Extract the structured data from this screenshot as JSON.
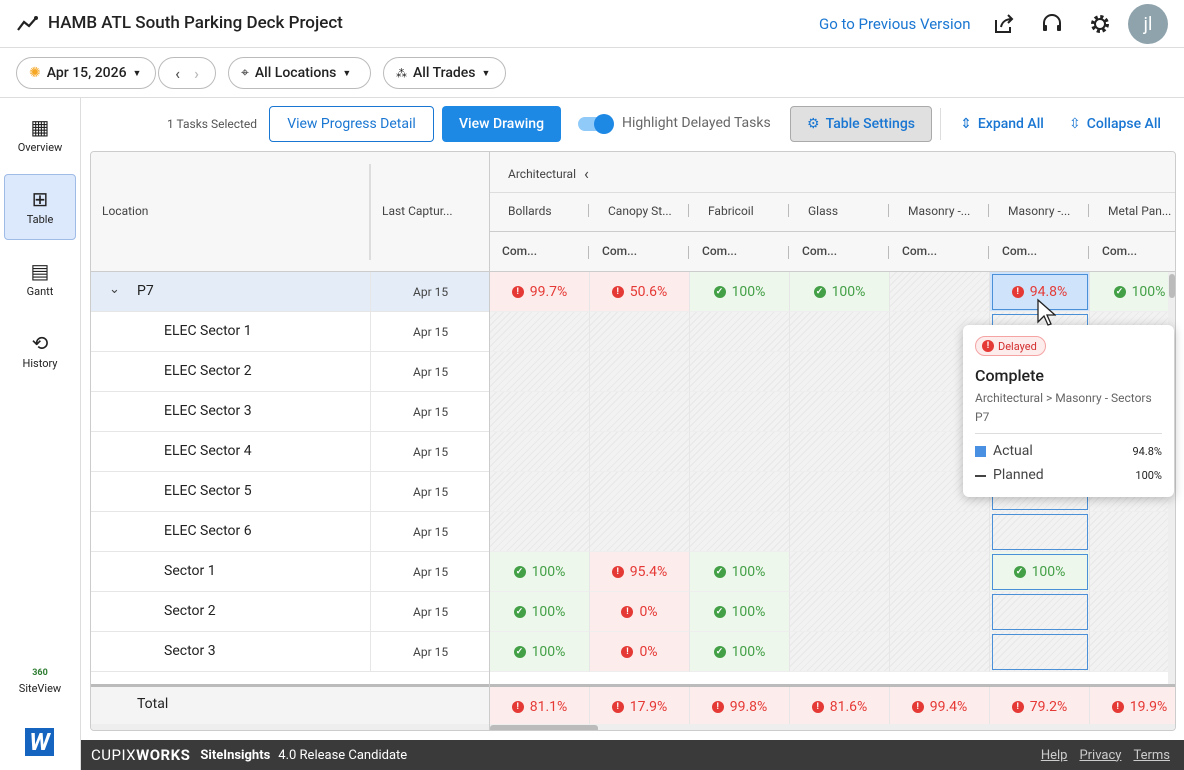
{
  "header": {
    "title": "HAMB ATL South Parking Deck Project",
    "previous_version": "Go to Previous Version",
    "avatar": "jl"
  },
  "toolbar": {
    "date": "Apr 15, 2026",
    "locations": "All Locations",
    "trades": "All Trades"
  },
  "sidebar": {
    "items": [
      "Overview",
      "Table",
      "Gantt",
      "History"
    ],
    "active": 1,
    "siteview_badge": "360",
    "siteview": "SiteView"
  },
  "actions": {
    "tasks_selected": "1 Tasks Selected",
    "view_progress": "View Progress Detail",
    "view_drawing": "View Drawing",
    "highlight": "Highlight Delayed Tasks",
    "table_settings": "Table Settings",
    "expand": "Expand All",
    "collapse": "Collapse All"
  },
  "table": {
    "location_header": "Location",
    "capture_header": "Last Captur...",
    "group": "Architectural",
    "columns": [
      "Bollards",
      "Canopy St...",
      "Fabricoil",
      "Glass",
      "Masonry -...",
      "Masonry -...",
      "Metal Pan..."
    ],
    "subheaders": [
      "Com...",
      "Com...",
      "Com...",
      "Com...",
      "Com...",
      "Com...",
      "Com..."
    ],
    "selected_column": 5,
    "rows": [
      {
        "location": "P7",
        "capture": "Apr 15",
        "cells": [
          {
            "value": "99.7%",
            "status": "delayed"
          },
          {
            "value": "50.6%",
            "status": "delayed"
          },
          {
            "value": "100%",
            "status": "ok"
          },
          {
            "value": "100%",
            "status": "ok"
          },
          null,
          {
            "value": "94.8%",
            "status": "delayed"
          },
          {
            "value": "100%",
            "status": "ok"
          }
        ]
      },
      {
        "location": "ELEC Sector 1",
        "capture": "Apr 15",
        "cells": [
          null,
          null,
          null,
          null,
          null,
          null,
          null
        ]
      },
      {
        "location": "ELEC Sector 2",
        "capture": "Apr 15",
        "cells": [
          null,
          null,
          null,
          null,
          null,
          null,
          null
        ]
      },
      {
        "location": "ELEC Sector 3",
        "capture": "Apr 15",
        "cells": [
          null,
          null,
          null,
          null,
          null,
          null,
          null
        ]
      },
      {
        "location": "ELEC Sector 4",
        "capture": "Apr 15",
        "cells": [
          null,
          null,
          null,
          null,
          null,
          null,
          null
        ]
      },
      {
        "location": "ELEC Sector 5",
        "capture": "Apr 15",
        "cells": [
          null,
          null,
          null,
          null,
          null,
          null,
          null
        ]
      },
      {
        "location": "ELEC Sector 6",
        "capture": "Apr 15",
        "cells": [
          null,
          null,
          null,
          null,
          null,
          null,
          null
        ]
      },
      {
        "location": "Sector 1",
        "capture": "Apr 15",
        "cells": [
          {
            "value": "100%",
            "status": "ok"
          },
          {
            "value": "95.4%",
            "status": "delayed"
          },
          {
            "value": "100%",
            "status": "ok"
          },
          null,
          null,
          {
            "value": "100%",
            "status": "ok"
          },
          null
        ]
      },
      {
        "location": "Sector 2",
        "capture": "Apr 15",
        "cells": [
          {
            "value": "100%",
            "status": "ok"
          },
          {
            "value": "0%",
            "status": "delayed"
          },
          {
            "value": "100%",
            "status": "ok"
          },
          null,
          null,
          null,
          null
        ]
      },
      {
        "location": "Sector 3",
        "capture": "Apr 15",
        "cells": [
          {
            "value": "100%",
            "status": "ok"
          },
          {
            "value": "0%",
            "status": "delayed"
          },
          {
            "value": "100%",
            "status": "ok"
          },
          null,
          null,
          null,
          null
        ]
      }
    ],
    "total": {
      "label": "Total",
      "cells": [
        {
          "value": "81.1%",
          "status": "delayed"
        },
        {
          "value": "17.9%",
          "status": "delayed"
        },
        {
          "value": "99.8%",
          "status": "delayed"
        },
        {
          "value": "81.6%",
          "status": "delayed"
        },
        {
          "value": "99.4%",
          "status": "delayed"
        },
        {
          "value": "79.2%",
          "status": "delayed"
        },
        {
          "value": "19.9%",
          "status": "delayed"
        }
      ]
    }
  },
  "tooltip": {
    "status": "Delayed",
    "title": "Complete",
    "path": "Architectural > Masonry - Sectors",
    "location": "P7",
    "actual_label": "Actual",
    "actual_value": "94.8%",
    "planned_label": "Planned",
    "planned_value": "100%"
  },
  "footer": {
    "brand_a": "CUPIX",
    "brand_b": "WORKS",
    "product": "SiteInsights",
    "version": "4.0 Release Candidate",
    "links": [
      "Help",
      "Privacy",
      "Terms"
    ]
  }
}
